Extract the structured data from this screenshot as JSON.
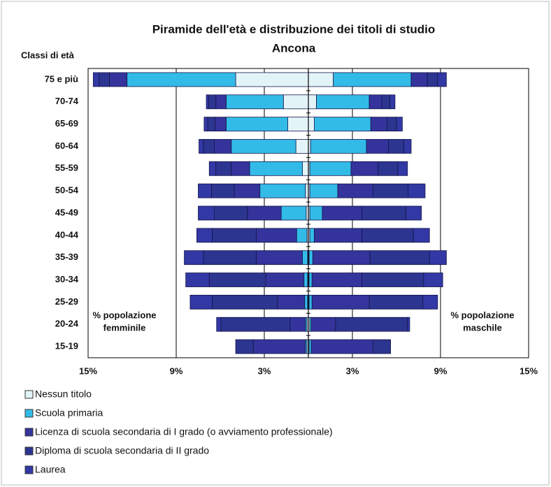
{
  "chart_data": {
    "type": "pyramid",
    "title": "Piramide dell'età e distribuzione dei titoli di studio",
    "subtitle": "Ancona",
    "y_label": "Classi di età",
    "categories": [
      "75 e più",
      "70-74",
      "65-69",
      "60-64",
      "55-59",
      "50-54",
      "45-49",
      "40-44",
      "35-39",
      "30-34",
      "25-29",
      "20-24",
      "15-19"
    ],
    "series": [
      {
        "name": "Nessun titolo",
        "color": "#e3f4f8",
        "female": [
          4.95,
          1.7,
          1.4,
          0.85,
          0.4,
          0.2,
          0.15,
          0.1,
          0.05,
          0.05,
          0.05,
          0.1,
          0.1
        ],
        "male": [
          1.7,
          0.55,
          0.4,
          0.15,
          0.1,
          0.1,
          0.1,
          0.1,
          0.05,
          0.05,
          0.05,
          0.1,
          0.05
        ]
      },
      {
        "name": "Scuola primaria",
        "color": "#33bbe8",
        "female": [
          7.4,
          3.9,
          4.2,
          4.4,
          3.6,
          3.1,
          1.7,
          0.7,
          0.35,
          0.25,
          0.2,
          0.1,
          0.1
        ],
        "male": [
          5.3,
          3.6,
          3.85,
          3.8,
          2.8,
          1.9,
          0.85,
          0.3,
          0.25,
          0.2,
          0.2,
          0.1,
          0.15
        ]
      },
      {
        "name": "Licenza di scuola secondaria di I grado (o avviamento professionale)",
        "color": "#34349c",
        "female": [
          1.2,
          0.7,
          0.75,
          1.15,
          1.25,
          1.75,
          2.3,
          2.75,
          3.15,
          2.6,
          1.85,
          1.05,
          3.55
        ],
        "male": [
          1.1,
          0.85,
          1.1,
          1.5,
          1.85,
          2.4,
          2.7,
          3.25,
          3.9,
          3.4,
          3.9,
          1.65,
          4.2
        ]
      },
      {
        "name": "Diploma di scuola secondaria di II grado",
        "color": "#2c3590",
        "female": [
          0.7,
          0.5,
          0.5,
          0.75,
          1.05,
          1.55,
          2.25,
          3.0,
          3.6,
          3.85,
          4.45,
          4.7,
          1.2
        ],
        "male": [
          0.7,
          0.55,
          0.65,
          1.05,
          1.35,
          2.4,
          3.0,
          3.5,
          4.05,
          4.2,
          3.65,
          4.9,
          1.2
        ]
      },
      {
        "name": "Laurea",
        "color": "#3238a4",
        "female": [
          0.4,
          0.15,
          0.25,
          0.3,
          0.45,
          0.9,
          1.1,
          1.05,
          1.3,
          1.6,
          1.5,
          0.3,
          0
        ],
        "male": [
          0.6,
          0.35,
          0.4,
          0.5,
          0.65,
          1.15,
          1.05,
          1.1,
          1.15,
          1.3,
          1.0,
          0.15,
          0
        ]
      }
    ],
    "xlim": [
      -15,
      15
    ],
    "xticks": [
      {
        "value": -15,
        "label": "15%"
      },
      {
        "value": -9,
        "label": "9%"
      },
      {
        "value": -3,
        "label": "3%"
      },
      {
        "value": 3,
        "label": "3%"
      },
      {
        "value": 9,
        "label": "9%"
      },
      {
        "value": 15,
        "label": "15%"
      }
    ],
    "annotations": [
      [
        "% popolazione",
        "femminile"
      ],
      [
        "% popolazione",
        "maschile"
      ]
    ],
    "grid": true
  }
}
